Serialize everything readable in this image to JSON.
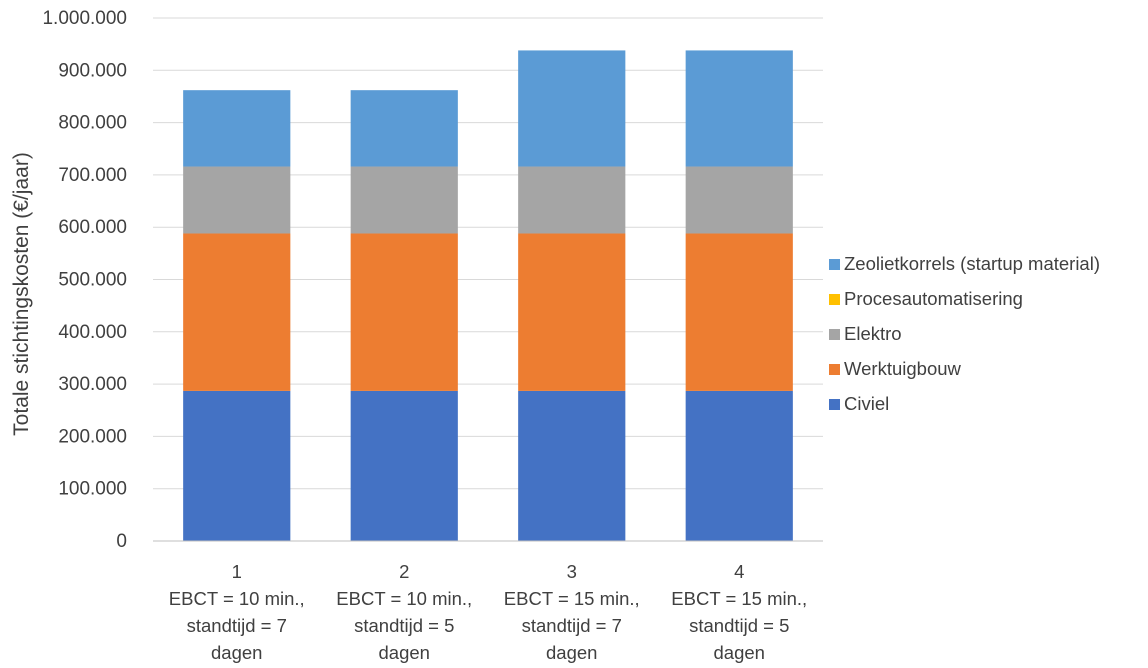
{
  "chart_data": {
    "type": "bar",
    "stacked": true,
    "ylabel": "Totale stichtingskosten (€/jaar)",
    "xlabel": "",
    "ylim": [
      0,
      1000000
    ],
    "y_ticks": [
      "0",
      "100.000",
      "200.000",
      "300.000",
      "400.000",
      "500.000",
      "600.000",
      "700.000",
      "800.000",
      "900.000",
      "1.000.000"
    ],
    "grid": true,
    "legend_position": "right",
    "categories": [
      [
        "1",
        "EBCT = 10 min.,",
        "standtijd = 7",
        "dagen"
      ],
      [
        "2",
        "EBCT = 10 min.,",
        "standtijd = 5",
        "dagen"
      ],
      [
        "3",
        "EBCT = 15 min.,",
        "standtijd = 7",
        "dagen"
      ],
      [
        "4",
        "EBCT = 15 min.,",
        "standtijd = 5",
        "dagen"
      ]
    ],
    "series": [
      {
        "name": "Civiel",
        "color": "#4472C4",
        "values": [
          287000,
          287000,
          287000,
          287000
        ]
      },
      {
        "name": "Werktuigbouw",
        "color": "#ED7D31",
        "values": [
          301000,
          301000,
          301000,
          301000
        ]
      },
      {
        "name": "Elektro",
        "color": "#A5A5A5",
        "values": [
          128000,
          128000,
          128000,
          128000
        ]
      },
      {
        "name": "Procesautomatisering",
        "color": "#FFC000",
        "values": [
          0,
          0,
          0,
          0
        ]
      },
      {
        "name": "Zeolietkorrels (startup material)",
        "color": "#5B9BD5",
        "values": [
          146000,
          146000,
          222000,
          222000
        ]
      }
    ]
  }
}
